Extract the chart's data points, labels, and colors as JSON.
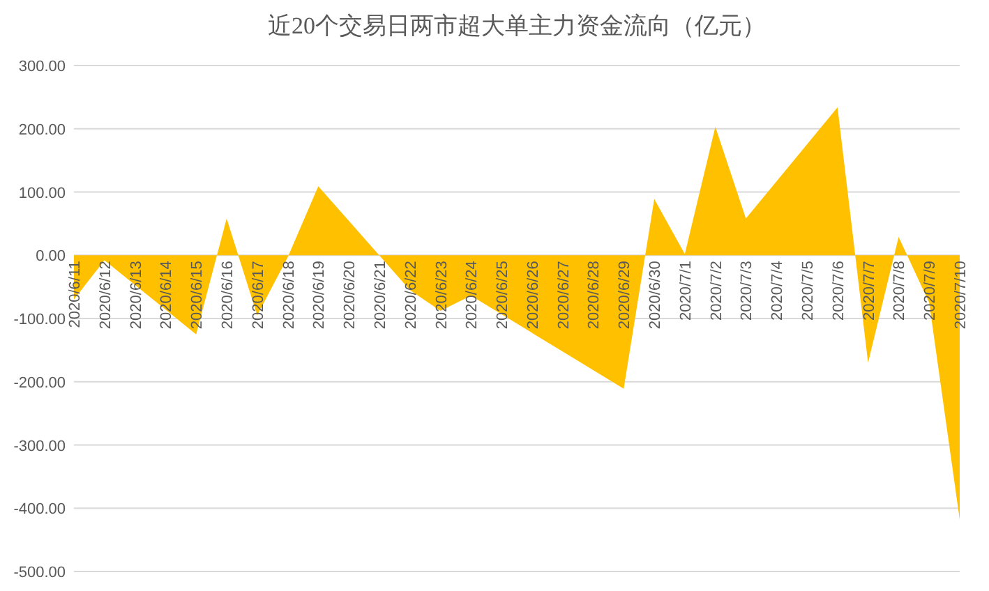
{
  "chart_data": {
    "type": "area",
    "title": "近20个交易日两市超大单主力资金流向（亿元）",
    "x": [
      "2020-06-11",
      "2020-06-12",
      "2020-06-15",
      "2020-06-16",
      "2020-06-17",
      "2020-06-18",
      "2020-06-19",
      "2020-06-22",
      "2020-06-23",
      "2020-06-24",
      "2020-06-29",
      "2020-06-30",
      "2020-07-01",
      "2020-07-02",
      "2020-07-03",
      "2020-07-06",
      "2020-07-07",
      "2020-07-08",
      "2020-07-09",
      "2020-07-10"
    ],
    "values": [
      -70,
      -8,
      -125,
      58,
      -95,
      -3,
      109,
      -55,
      -88,
      -64,
      -211,
      89,
      2,
      203,
      58,
      234,
      -170,
      29,
      -75,
      -418
    ],
    "color": "#ffc000",
    "xlim": [
      "2020-06-11",
      "2020-07-10"
    ],
    "xticks": [
      {
        "value": "2020-06-11",
        "label": "2020/6/11"
      },
      {
        "value": "2020-06-12",
        "label": "2020/6/12"
      },
      {
        "value": "2020-06-13",
        "label": "2020/6/13"
      },
      {
        "value": "2020-06-14",
        "label": "2020/6/14"
      },
      {
        "value": "2020-06-15",
        "label": "2020/6/15"
      },
      {
        "value": "2020-06-16",
        "label": "2020/6/16"
      },
      {
        "value": "2020-06-17",
        "label": "2020/6/17"
      },
      {
        "value": "2020-06-18",
        "label": "2020/6/18"
      },
      {
        "value": "2020-06-19",
        "label": "2020/6/19"
      },
      {
        "value": "2020-06-20",
        "label": "2020/6/20"
      },
      {
        "value": "2020-06-21",
        "label": "2020/6/21"
      },
      {
        "value": "2020-06-22",
        "label": "2020/6/22"
      },
      {
        "value": "2020-06-23",
        "label": "2020/6/23"
      },
      {
        "value": "2020-06-24",
        "label": "2020/6/24"
      },
      {
        "value": "2020-06-25",
        "label": "2020/6/25"
      },
      {
        "value": "2020-06-26",
        "label": "2020/6/26"
      },
      {
        "value": "2020-06-27",
        "label": "2020/6/27"
      },
      {
        "value": "2020-06-28",
        "label": "2020/6/28"
      },
      {
        "value": "2020-06-29",
        "label": "2020/6/29"
      },
      {
        "value": "2020-06-30",
        "label": "2020/6/30"
      },
      {
        "value": "2020-07-01",
        "label": "2020/7/1"
      },
      {
        "value": "2020-07-02",
        "label": "2020/7/2"
      },
      {
        "value": "2020-07-03",
        "label": "2020/7/3"
      },
      {
        "value": "2020-07-04",
        "label": "2020/7/4"
      },
      {
        "value": "2020-07-05",
        "label": "2020/7/5"
      },
      {
        "value": "2020-07-06",
        "label": "2020/7/6"
      },
      {
        "value": "2020-07-07",
        "label": "2020/7/7"
      },
      {
        "value": "2020-07-08",
        "label": "2020/7/8"
      },
      {
        "value": "2020-07-09",
        "label": "2020/7/9"
      },
      {
        "value": "2020-07-10",
        "label": "2020/7/10"
      }
    ],
    "ylim": [
      -500,
      300
    ],
    "yticks": [
      {
        "value": -500,
        "label": "-500.00"
      },
      {
        "value": -400,
        "label": "-400.00"
      },
      {
        "value": -300,
        "label": "-300.00"
      },
      {
        "value": -200,
        "label": "-200.00"
      },
      {
        "value": -100,
        "label": "-100.00"
      },
      {
        "value": 0,
        "label": "0.00"
      },
      {
        "value": 100,
        "label": "100.00"
      },
      {
        "value": 200,
        "label": "200.00"
      },
      {
        "value": 300,
        "label": "300.00"
      }
    ],
    "grid": "y"
  }
}
